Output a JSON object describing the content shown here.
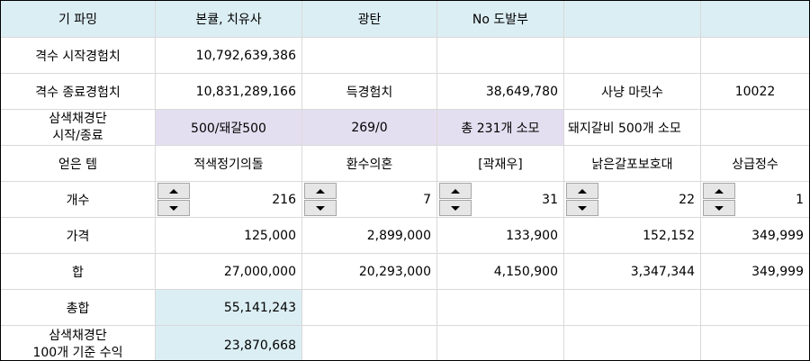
{
  "header": {
    "col1": "기 파밍",
    "col2": "본큘, 치유사",
    "col3": "광탄",
    "col4": "No 도발부"
  },
  "rows": {
    "start_exp": {
      "label": "격수 시작경험치",
      "value": "10,792,639,386"
    },
    "end_exp": {
      "label": "격수 종료경험치",
      "value": "10,831,289,166",
      "gain_label": "득경험치",
      "gain_value": "38,649,780",
      "hunt_label": "사냥 마릿수",
      "hunt_value": "10022"
    },
    "tricolor": {
      "label_line1": "삼색채경단",
      "label_line2": "시작/종료",
      "v1": "500/돼갈500",
      "v2": "269/0",
      "v3": "총 231개 소모",
      "v4": "돼지갈비 500개 소모"
    },
    "items": {
      "label": "얻은 템",
      "names": [
        "적색정기의돌",
        "환수의혼",
        "[곽재우]",
        "낡은갈포보호대",
        "상급정수"
      ]
    },
    "counts": {
      "label": "개수",
      "values": [
        "216",
        "7",
        "31",
        "22",
        "1"
      ]
    },
    "prices": {
      "label": "가격",
      "values": [
        "125,000",
        "2,899,000",
        "133,900",
        "152,152",
        "349,999"
      ]
    },
    "sums": {
      "label": "합",
      "values": [
        "27,000,000",
        "20,293,000",
        "4,150,900",
        "3,347,344",
        "349,999"
      ]
    },
    "total": {
      "label": "총합",
      "value": "55,141,243"
    },
    "profit": {
      "label_line1": "삼색채경단",
      "label_line2": "100개 기준 수익",
      "value": "23,870,668"
    }
  },
  "colors": {
    "header_bg": "#dbeef4",
    "purple_bg": "#e4dff0",
    "grid": "#d9d9d9",
    "spinner_bg": "#e6e6e6"
  },
  "icons": [
    "spin-up-icon",
    "spin-down-icon"
  ]
}
